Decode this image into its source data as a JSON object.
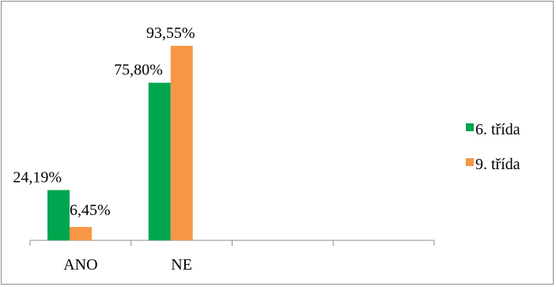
{
  "chart_data": {
    "type": "bar",
    "title": "",
    "xlabel": "",
    "ylabel": "",
    "categories": [
      "ANO",
      "NE",
      "",
      ""
    ],
    "series": [
      {
        "name": "6. třída",
        "color": "#00a550",
        "values": [
          24.19,
          75.8,
          null,
          null
        ],
        "labels": [
          "24,19%",
          "75,80%",
          "",
          ""
        ]
      },
      {
        "name": "9. třída",
        "color": "#f79646",
        "values": [
          6.45,
          93.55,
          null,
          null
        ],
        "labels": [
          "6,45%",
          "93,55%",
          "",
          ""
        ]
      }
    ],
    "ylim": [
      0,
      100
    ],
    "grid": false,
    "legend_position": "right"
  }
}
